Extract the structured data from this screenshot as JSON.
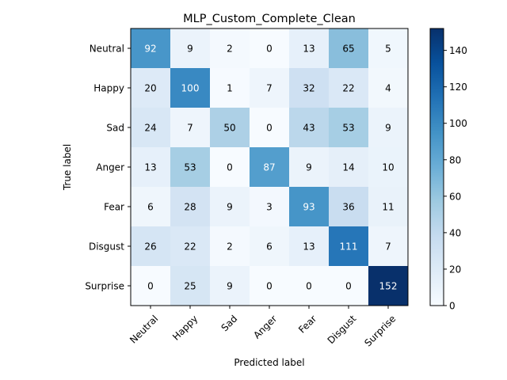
{
  "chart_data": {
    "type": "heatmap",
    "title": "MLP_Custom_Complete_Clean",
    "xlabel": "Predicted label",
    "ylabel": "True label",
    "x_categories": [
      "Neutral",
      "Happy",
      "Sad",
      "Anger",
      "Fear",
      "Disgust",
      "Surprise"
    ],
    "y_categories": [
      "Neutral",
      "Happy",
      "Sad",
      "Anger",
      "Fear",
      "Disgust",
      "Surprise"
    ],
    "matrix": [
      [
        92,
        9,
        2,
        0,
        13,
        65,
        5
      ],
      [
        20,
        100,
        1,
        7,
        32,
        22,
        4
      ],
      [
        24,
        7,
        50,
        0,
        43,
        53,
        9
      ],
      [
        13,
        53,
        0,
        87,
        9,
        14,
        10
      ],
      [
        6,
        28,
        9,
        3,
        93,
        36,
        11
      ],
      [
        26,
        22,
        2,
        6,
        13,
        111,
        7
      ],
      [
        0,
        25,
        9,
        0,
        0,
        0,
        152
      ]
    ],
    "value_range": [
      0,
      152
    ],
    "colormap": "Blues",
    "colorbar_ticks": [
      0,
      20,
      40,
      60,
      80,
      100,
      120,
      140
    ],
    "x_tick_rotation_deg": 45
  }
}
